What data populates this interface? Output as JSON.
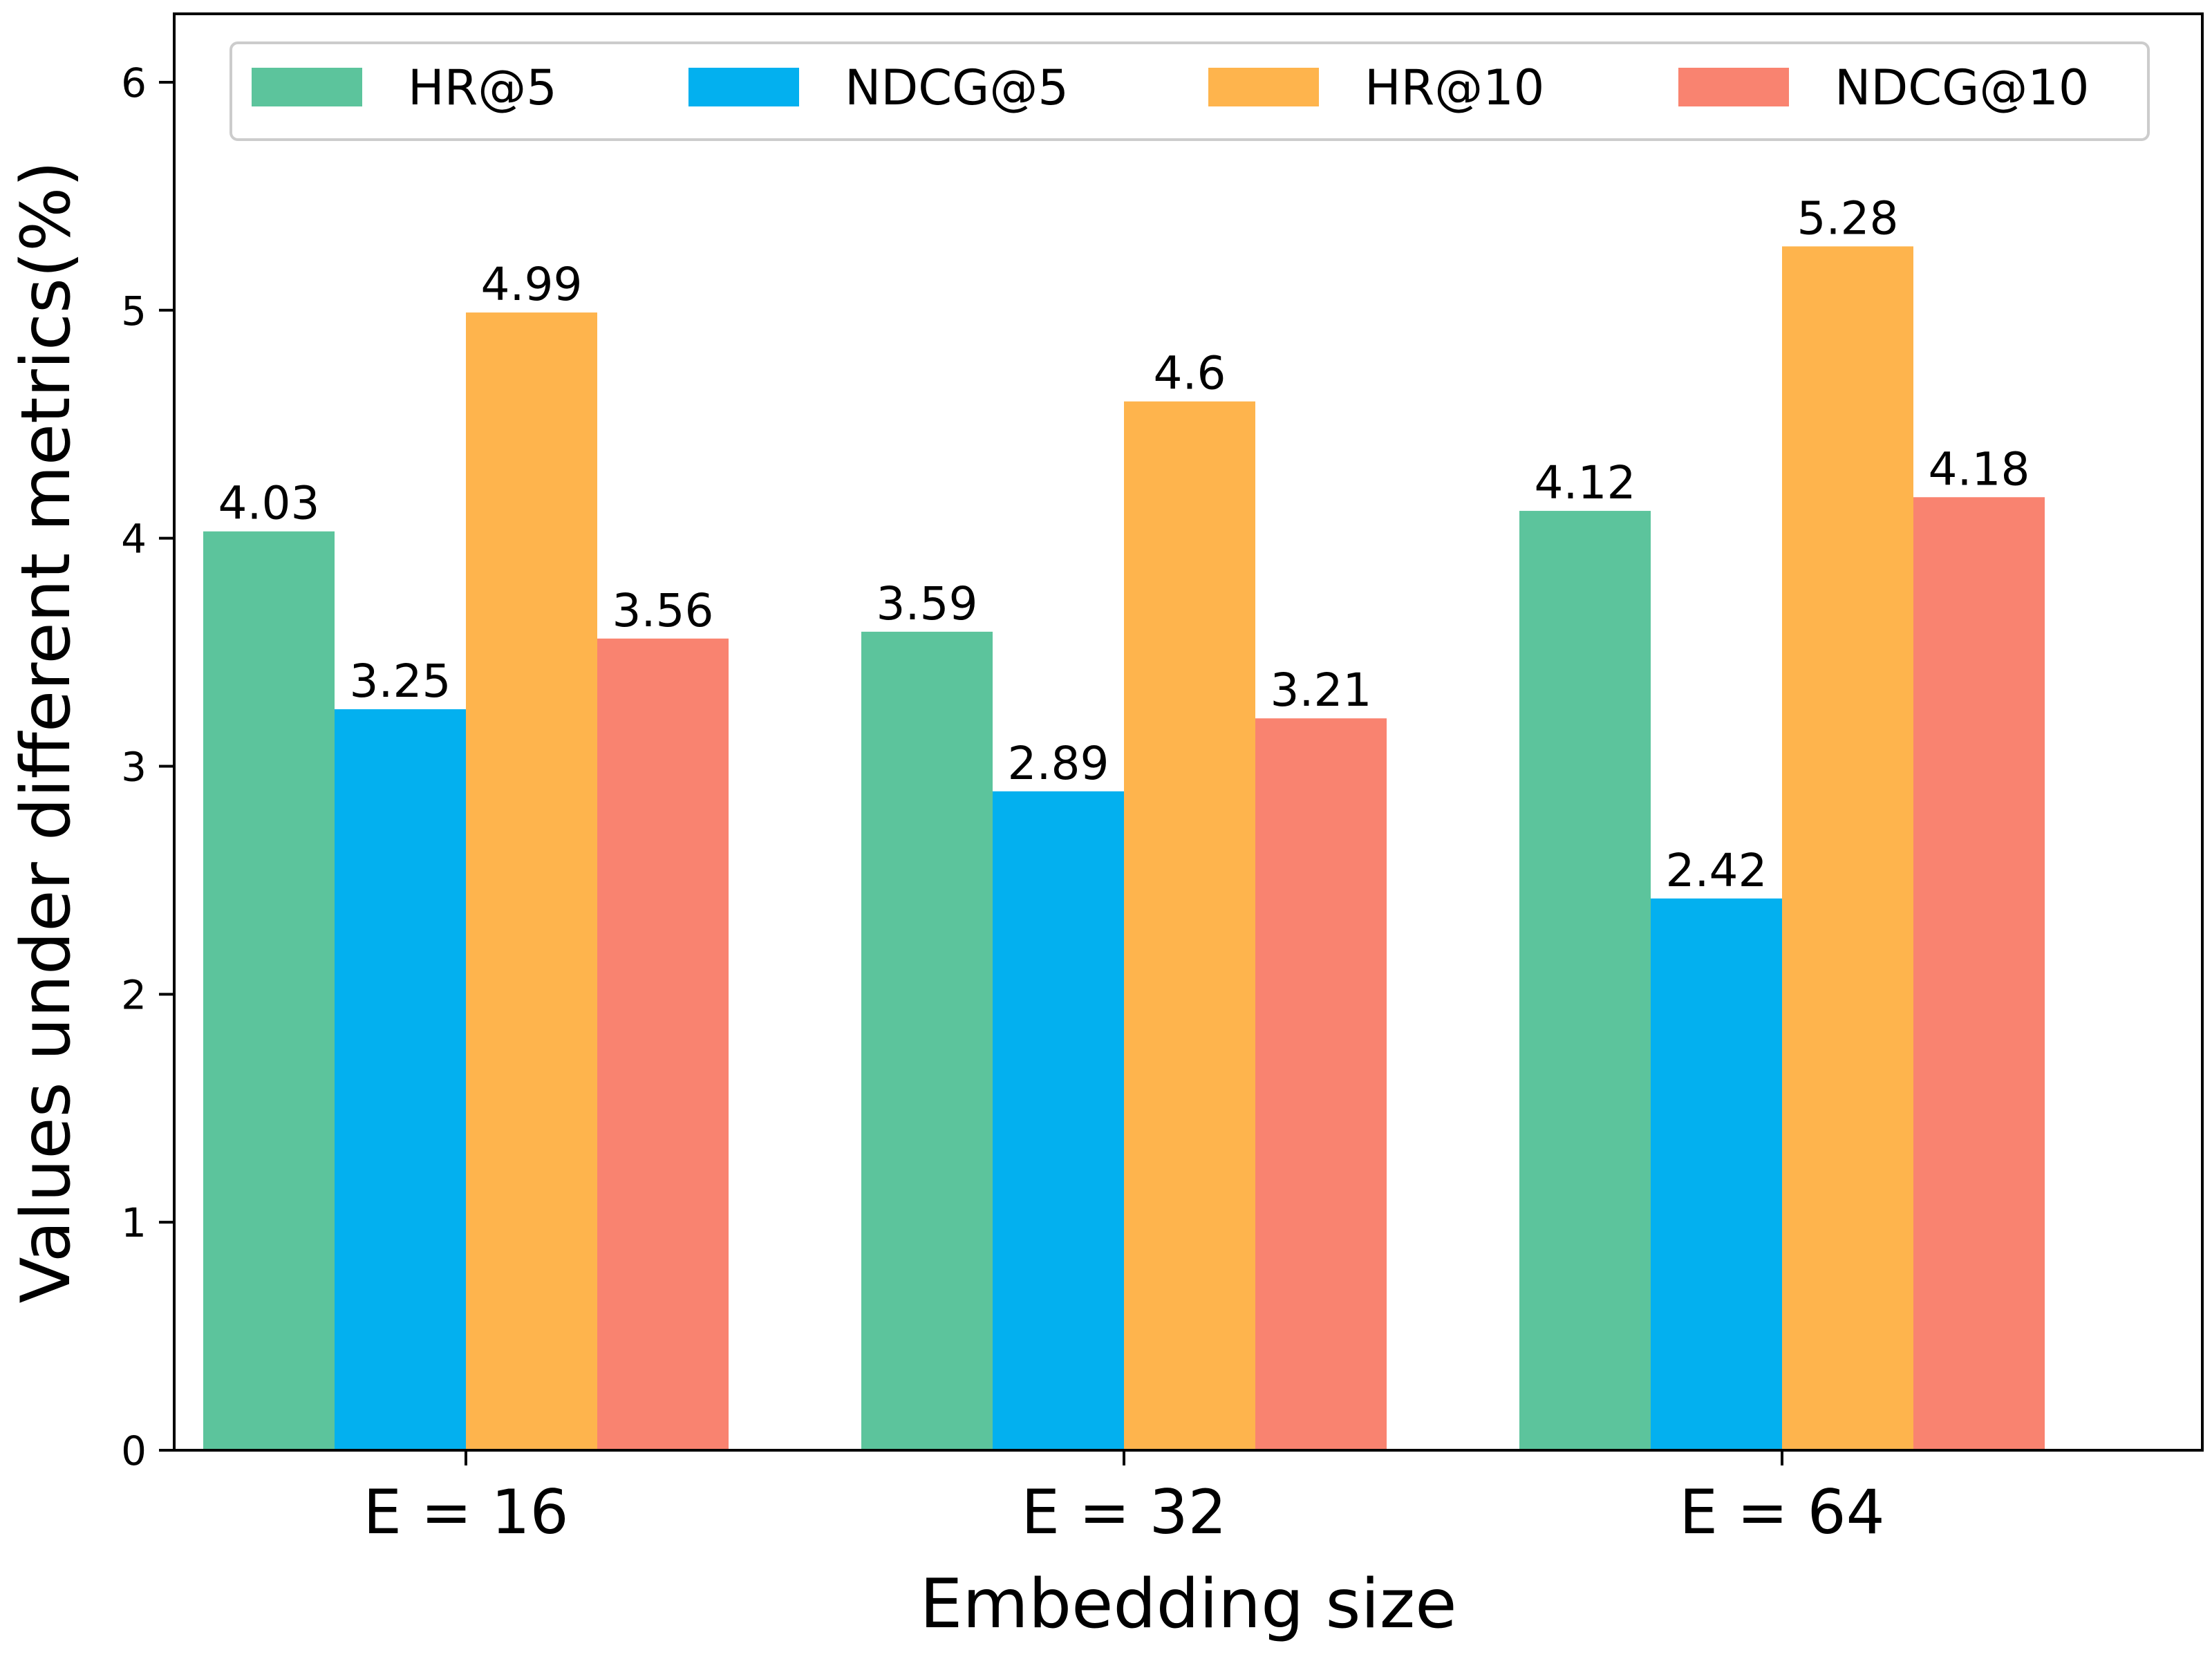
{
  "chart_data": {
    "type": "bar",
    "xlabel": "Embedding size",
    "ylabel": "Values under different metrics(%)",
    "categories": [
      "E = 16",
      "E = 32",
      "E = 64"
    ],
    "series": [
      {
        "name": "HR@5",
        "color": "#5cc49c",
        "values": [
          4.03,
          3.59,
          4.12
        ],
        "labels": [
          "4.03",
          "3.59",
          "4.12"
        ]
      },
      {
        "name": "NDCG@5",
        "color": "#03b0ef",
        "values": [
          3.25,
          2.89,
          2.42
        ],
        "labels": [
          "3.25",
          "2.89",
          "2.42"
        ]
      },
      {
        "name": "HR@10",
        "color": "#feb44d",
        "values": [
          4.99,
          4.6,
          5.28
        ],
        "labels": [
          "4.99",
          "4.6",
          "5.28"
        ]
      },
      {
        "name": "NDCG@10",
        "color": "#f98370",
        "values": [
          3.56,
          3.21,
          4.18
        ],
        "labels": [
          "3.56",
          "3.21",
          "4.18"
        ]
      }
    ],
    "ylim": [
      0,
      6.3
    ],
    "yticks": [
      0,
      1,
      2,
      3,
      4,
      5,
      6
    ],
    "ytick_labels": [
      "0",
      "1",
      "2",
      "3",
      "4",
      "5",
      "6"
    ],
    "grid": false,
    "legend_position": "top"
  }
}
